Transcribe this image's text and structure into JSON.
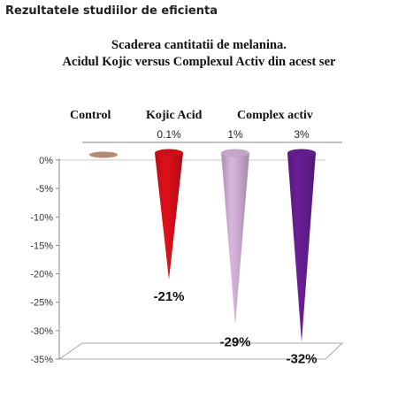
{
  "header": {
    "title": "Rezultatele studiilor de eficienta"
  },
  "chart_data": {
    "type": "bar",
    "title_line1": "Scaderea cantitatii de melanina.",
    "title_line2": "Acidul Kojic versus Complexul Activ din acest ser",
    "categories": [
      "Control",
      "Kojic Acid",
      "Complex activ",
      "Complex activ"
    ],
    "category_headers": [
      "Control",
      "Kojic Acid",
      "Complex activ"
    ],
    "concentrations": [
      "",
      "0.1%",
      "1%",
      "3%"
    ],
    "values": [
      0,
      -21,
      -29,
      -32
    ],
    "data_labels": [
      "",
      "-21%",
      "-29%",
      "-32%"
    ],
    "colors": [
      "#b58a76",
      "#e0101a",
      "#d7b5dc",
      "#6a1f97"
    ],
    "ylim": [
      -35,
      0
    ],
    "yticks": [
      0,
      -5,
      -10,
      -15,
      -20,
      -25,
      -30,
      -35
    ],
    "ytick_labels": [
      "0%",
      "-5%",
      "-10%",
      "-15%",
      "-20%",
      "-25%",
      "-30%",
      "-35%"
    ],
    "xlabel": "",
    "ylabel": "",
    "grid": false
  }
}
